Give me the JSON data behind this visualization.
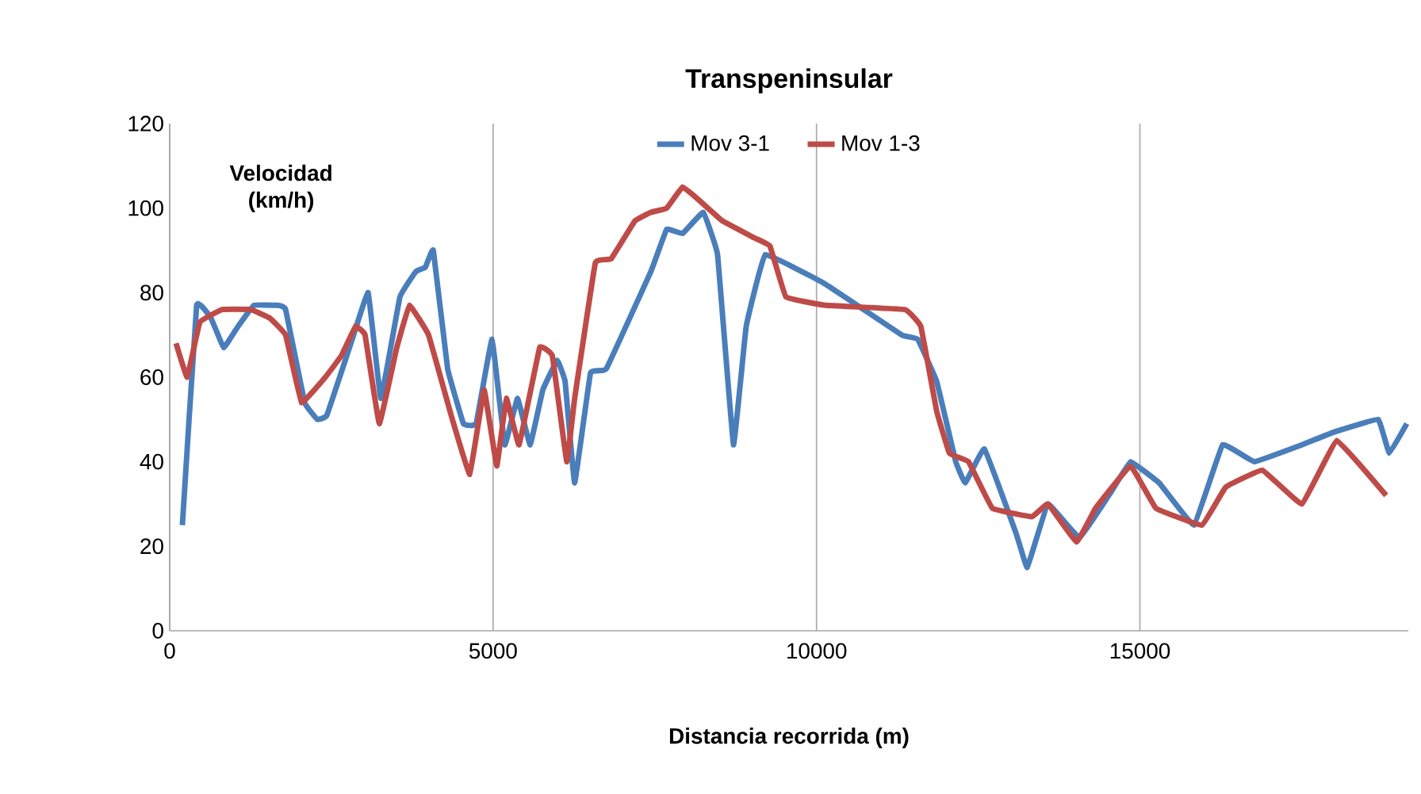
{
  "chart_data": {
    "type": "line",
    "title": "Transpeninsular",
    "xlabel": "Distancia recorrida (m)",
    "ylabel": "Velocidad (km/h)",
    "xlim": [
      0,
      19150
    ],
    "xticks": [
      0,
      5000,
      10000,
      15000
    ],
    "ylim": [
      0,
      120
    ],
    "yticks": [
      0,
      20,
      40,
      60,
      80,
      100,
      120
    ],
    "grid": "x",
    "legend": "top",
    "line_style": "solid",
    "marker": "none",
    "series": [
      {
        "name": "Mov 3-1",
        "color": "#4a7ebb",
        "x": [
          196,
          417,
          638,
          835,
          1056,
          1301,
          1670,
          1792,
          2087,
          2283,
          2430,
          2823,
          3069,
          3265,
          3560,
          3806,
          3953,
          4076,
          4297,
          4542,
          4738,
          4984,
          5180,
          5377,
          5573,
          5769,
          5990,
          6113,
          6261,
          6506,
          6751,
          7439,
          7684,
          7930,
          8249,
          8470,
          8716,
          8913,
          9207,
          10140,
          11318,
          11564,
          11858,
          12153,
          12301,
          12596,
          13087,
          13259,
          13578,
          14069,
          14560,
          14855,
          15297,
          15837,
          16278,
          16770,
          17506,
          17997,
          18684,
          18856,
          19126
        ],
        "values": [
          25,
          77,
          74,
          67,
          72,
          77,
          77,
          76,
          54,
          50,
          51,
          69,
          80,
          55,
          79,
          85,
          86,
          90,
          62,
          49,
          49,
          69,
          44,
          55,
          44,
          57,
          64,
          59,
          35,
          61,
          62,
          85,
          95,
          94,
          99,
          89,
          44,
          72,
          89,
          82,
          70,
          69,
          59,
          40,
          35,
          43,
          23,
          15,
          30,
          22,
          33,
          40,
          35,
          25,
          44,
          40,
          44,
          47,
          50,
          42,
          49
        ]
      },
      {
        "name": "Mov 1-3",
        "color": "#be4b48",
        "x": [
          98,
          270,
          466,
          810,
          1252,
          1547,
          1792,
          2038,
          2406,
          2651,
          2872,
          3020,
          3241,
          3511,
          3707,
          4002,
          4370,
          4640,
          4861,
          5057,
          5205,
          5402,
          5720,
          5917,
          6138,
          6261,
          6580,
          6825,
          7193,
          7439,
          7684,
          7930,
          8176,
          8544,
          9035,
          9281,
          9527,
          10140,
          11367,
          11613,
          11858,
          12055,
          12350,
          12718,
          13332,
          13578,
          14020,
          14315,
          14855,
          15248,
          15960,
          16328,
          16893,
          17506,
          18046,
          18807
        ],
        "values": [
          68,
          60,
          73,
          76,
          76,
          74,
          70,
          54,
          60,
          65,
          72,
          70,
          49,
          67,
          77,
          70,
          50,
          37,
          57,
          39,
          55,
          44,
          67,
          65,
          40,
          55,
          87,
          88,
          97,
          99,
          100,
          105,
          102,
          97,
          93,
          91,
          79,
          77,
          76,
          72,
          52,
          42,
          40,
          29,
          27,
          30,
          21,
          29,
          39,
          29,
          25,
          34,
          38,
          30,
          45,
          32
        ]
      }
    ]
  }
}
